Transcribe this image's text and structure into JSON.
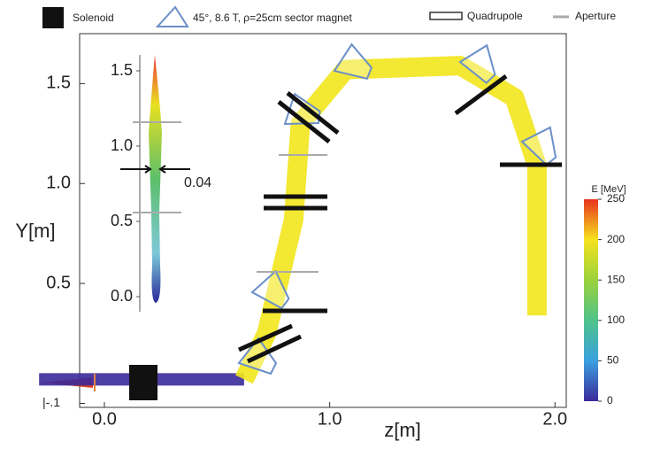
{
  "chart_data": {
    "type": "beamline",
    "legend": {
      "solenoid": "Solenoid",
      "magnet": "45°, 8.6 T, ρ=25cm sector magnet",
      "quadrupole": "Quadrupole",
      "aperture": "Aperture"
    },
    "xlabel": "z[m]",
    "ylabel": "Y[m]",
    "xlim": [
      -0.11,
      2.05
    ],
    "ylim": [
      -0.12,
      1.75
    ],
    "xticks": [
      {
        "value": 0,
        "label": "0.0"
      },
      {
        "value": 1,
        "label": "1.0"
      },
      {
        "value": 2,
        "label": "2.0"
      }
    ],
    "yticks": [
      {
        "value": -0.1,
        "label": "|-.1"
      },
      {
        "value": 0.5,
        "label": "0.5"
      },
      {
        "value": 1,
        "label": "1.0"
      },
      {
        "value": 1.5,
        "label": "1.5"
      }
    ],
    "series": [
      {
        "color": "#3b2a9b",
        "x": [
          -0.29,
          0.2,
          0.62
        ],
        "y": [
          0.02,
          0.02,
          0.02
        ]
      },
      {
        "color": "#f2e51c",
        "x": [
          0.62,
          0.72,
          0.84,
          0.87,
          1.07,
          1.58,
          1.82,
          1.92,
          1.92
        ],
        "y": [
          0.02,
          0.25,
          0.82,
          1.3,
          1.57,
          1.59,
          1.43,
          1.09,
          0.34
        ]
      }
    ],
    "inset": {
      "ylim": [
        -0.05,
        1.6
      ],
      "yticks": [
        {
          "value": 0,
          "label": "0.0"
        },
        {
          "value": 0.5,
          "label": "0.5"
        },
        {
          "value": 1,
          "label": "1.0"
        },
        {
          "value": 1.5,
          "label": "1.5"
        }
      ],
      "annotation": "0.04"
    },
    "colorbar": {
      "title": "E [MeV]",
      "lim": [
        0,
        250
      ],
      "ticks": [
        0,
        50,
        100,
        150,
        200,
        250
      ]
    }
  }
}
